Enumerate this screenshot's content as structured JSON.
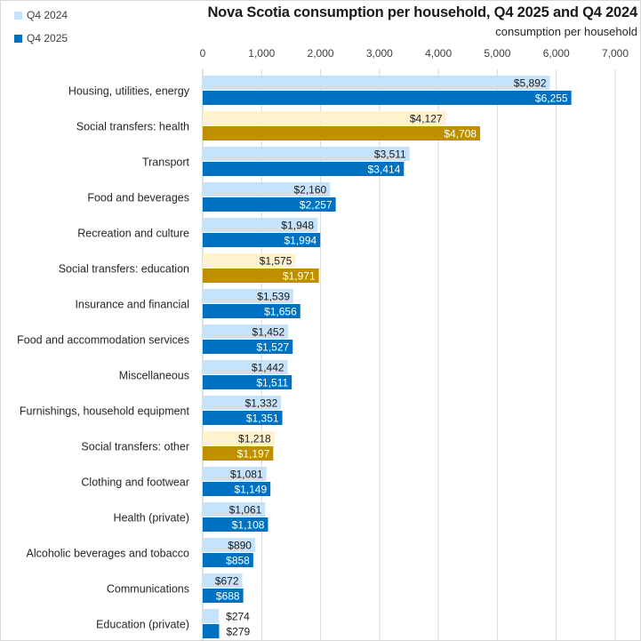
{
  "chart_data": {
    "type": "bar",
    "orientation": "horizontal",
    "title": "Nova Scotia consumption per household, Q4 2025 and Q4 2024",
    "xlabel": "consumption per household",
    "ylabel": "",
    "xlim": [
      0,
      7000
    ],
    "xticks": [
      0,
      1000,
      2000,
      3000,
      4000,
      5000,
      6000,
      7000
    ],
    "xtick_labels": [
      "0",
      "1,000",
      "2,000",
      "3,000",
      "4,000",
      "5,000",
      "6,000",
      "7,000"
    ],
    "grid": true,
    "legend_position": "top-left",
    "value_prefix": "$",
    "categories": [
      "Housing, utilities, energy",
      "Social transfers: health",
      "Transport",
      "Food and beverages",
      "Recreation and culture",
      "Social transfers: education",
      "Insurance and financial",
      "Food and accommodation services",
      "Miscellaneous",
      "Furnishings, household equipment",
      "Social transfers: other",
      "Clothing and footwear",
      "Health (private)",
      "Alcoholic beverages and tobacco",
      "Communications",
      "Education (private)"
    ],
    "highlight_categories": [
      "Social transfers: health",
      "Social transfers: education",
      "Social transfers: other"
    ],
    "series": [
      {
        "name": "Q4 2024",
        "color": "#c5e3fa",
        "highlight_color": "#fff2cc",
        "label_color": "#1a1a1a",
        "values": [
          5892,
          4127,
          3511,
          2160,
          1948,
          1575,
          1539,
          1452,
          1442,
          1332,
          1218,
          1081,
          1061,
          890,
          672,
          274
        ],
        "labels": [
          "$5,892",
          "$4,127",
          "$3,511",
          "$2,160",
          "$1,948",
          "$1,575",
          "$1,539",
          "$1,452",
          "$1,442",
          "$1,332",
          "$1,218",
          "$1,081",
          "$1,061",
          "$890",
          "$672",
          "$274"
        ]
      },
      {
        "name": "Q4 2025",
        "color": "#0070c0",
        "highlight_color": "#bf8f00",
        "label_color": "#ffffff",
        "values": [
          6255,
          4708,
          3414,
          2257,
          1994,
          1971,
          1656,
          1527,
          1511,
          1351,
          1197,
          1149,
          1108,
          858,
          688,
          279
        ],
        "labels": [
          "$6,255",
          "$4,708",
          "$3,414",
          "$2,257",
          "$1,994",
          "$1,971",
          "$1,656",
          "$1,527",
          "$1,511",
          "$1,351",
          "$1,197",
          "$1,149",
          "$1,108",
          "$858",
          "$688",
          "$279"
        ]
      }
    ]
  },
  "legend": {
    "items": [
      {
        "label": "Q4 2024",
        "color": "#c5e3fa"
      },
      {
        "label": "Q4 2025",
        "color": "#0070c0"
      }
    ]
  }
}
